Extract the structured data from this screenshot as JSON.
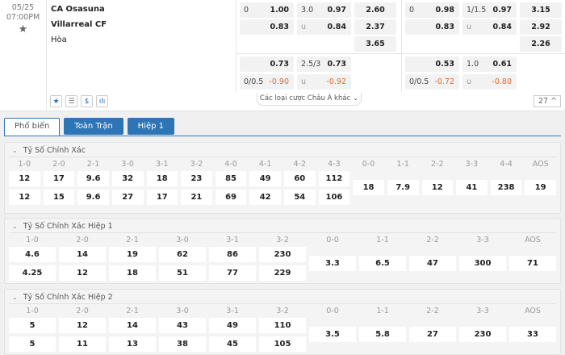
{
  "match": {
    "date": "05/25",
    "time": "07:00PM",
    "home": "CA Osasuna",
    "away": "Villarreal CF",
    "draw": "Hòa"
  },
  "odds": {
    "ft": {
      "hdp_line": "0",
      "hdp_home": "1.00",
      "hdp_away": "0.83",
      "ou_line": "3.0",
      "ou_over": "0.97",
      "ou_u": "u",
      "ou_under": "0.84",
      "x12": [
        "2.60",
        "2.37",
        "3.65"
      ],
      "alt_hdp_home": "0.73",
      "alt_hdp_line": "0/0.5",
      "alt_hdp_away": "-0.90",
      "alt_ou_line": "2.5/3",
      "alt_ou_over": "0.73",
      "alt_ou_u": "u",
      "alt_ou_under": "-0.92"
    },
    "h1": {
      "hdp_line": "0",
      "hdp_home": "0.98",
      "hdp_away": "0.83",
      "ou_line": "1/1.5",
      "ou_over": "0.97",
      "ou_u": "u",
      "ou_under": "0.84",
      "x12": [
        "3.15",
        "2.92",
        "2.26"
      ],
      "alt_hdp_home": "0.53",
      "alt_hdp_line": "0/0.5",
      "alt_hdp_away": "-0.72",
      "alt_ou_line": "1.0",
      "alt_ou_over": "0.61",
      "alt_ou_u": "u",
      "alt_ou_under": "-0.80"
    }
  },
  "toolbar": {
    "icons": [
      "star-icon",
      "list-icon",
      "dollar-icon",
      "bar-chart-icon"
    ],
    "more_label": "Các loại cược Châu Á khác ⌄",
    "count": "27 ^"
  },
  "tabs": [
    {
      "label": "Phổ biến",
      "active": true
    },
    {
      "label": "Toàn Trận"
    },
    {
      "label": "Hiệp 1"
    }
  ],
  "sections": [
    {
      "title": "Tỷ Số Chính Xác",
      "home_scores": [
        "1-0",
        "2-0",
        "2-1",
        "3-0",
        "3-1",
        "3-2",
        "4-0",
        "4-1",
        "4-2",
        "4-3"
      ],
      "row1": [
        "12",
        "17",
        "9.6",
        "32",
        "18",
        "23",
        "85",
        "49",
        "60",
        "112"
      ],
      "row2": [
        "12",
        "15",
        "9.6",
        "27",
        "17",
        "21",
        "69",
        "42",
        "54",
        "106"
      ],
      "draws": [
        "0-0",
        "1-1",
        "2-2",
        "3-3",
        "4-4",
        "AOS"
      ],
      "draw_odds": [
        "18",
        "7.9",
        "12",
        "41",
        "238",
        "19"
      ]
    },
    {
      "title": "Tỷ Số Chính Xác Hiệp 1",
      "home_scores": [
        "1-0",
        "2-0",
        "2-1",
        "3-0",
        "3-1",
        "3-2"
      ],
      "row1": [
        "4.6",
        "14",
        "19",
        "62",
        "86",
        "230"
      ],
      "row2": [
        "4.25",
        "12",
        "18",
        "51",
        "77",
        "229"
      ],
      "draws": [
        "0-0",
        "1-1",
        "2-2",
        "3-3",
        "AOS"
      ],
      "draw_odds": [
        "3.3",
        "6.5",
        "47",
        "300",
        "71"
      ]
    },
    {
      "title": "Tỷ Số Chính Xác Hiệp 2",
      "home_scores": [
        "1-0",
        "2-0",
        "2-1",
        "3-0",
        "3-1",
        "3-2"
      ],
      "row1": [
        "5",
        "12",
        "14",
        "43",
        "49",
        "110"
      ],
      "row2": [
        "5",
        "11",
        "13",
        "38",
        "45",
        "105"
      ],
      "draws": [
        "0-0",
        "1-1",
        "2-2",
        "3-3",
        "AOS"
      ],
      "draw_odds": [
        "3.5",
        "5.8",
        "27",
        "230",
        "33"
      ]
    }
  ]
}
